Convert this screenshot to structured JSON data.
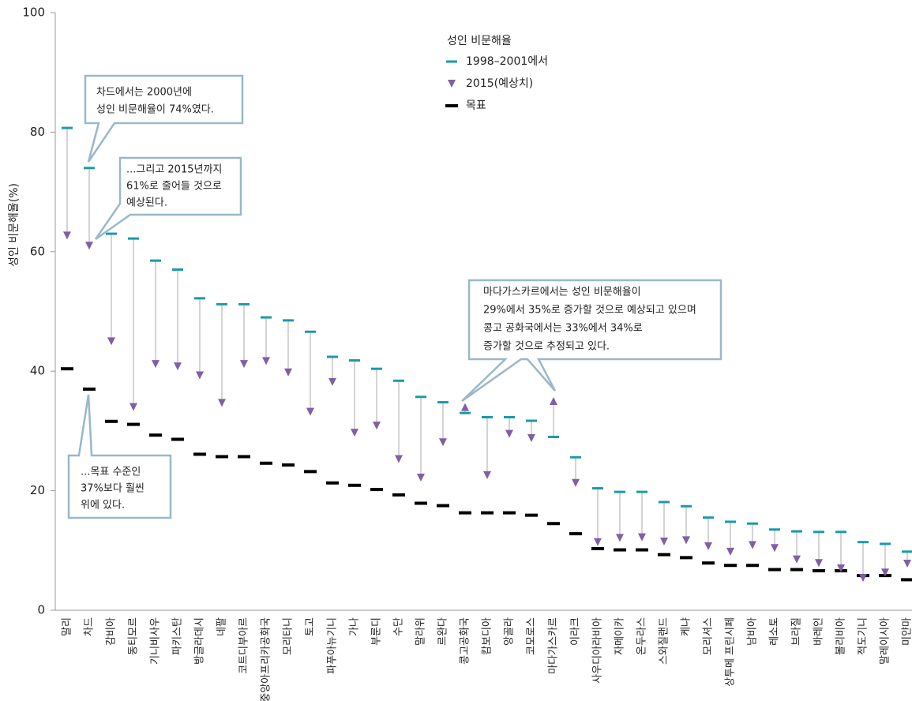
{
  "chart_data": {
    "type": "dot-range",
    "y_label": "성인 비문해율(%)",
    "legend_title": "성인 비문해율",
    "categories": [
      "말리",
      "차드",
      "감비아",
      "동티모르",
      "기니비사우",
      "파키스탄",
      "방글라데시",
      "네팔",
      "코트디부아르",
      "중앙아프리카공화국",
      "모리타니",
      "토고",
      "파푸아뉴기니",
      "가나",
      "부룬디",
      "수단",
      "말라위",
      "르완다",
      "콩고공화국",
      "캄보디아",
      "앙골라",
      "코모로스",
      "마다가스카르",
      "이라크",
      "사우디아라비아",
      "자메이카",
      "온두라스",
      "스와질랜드",
      "케냐",
      "모리셔스",
      "상투메 프린시페",
      "남비아",
      "레소토",
      "브라질",
      "바레인",
      "볼리비아",
      "적도기니",
      "말레이시아",
      "미얀마"
    ],
    "series": [
      {
        "name": "1998–2001에서",
        "color": "#1b9aaa",
        "values": [
          80.7,
          74,
          63,
          62.2,
          58.5,
          57,
          52.2,
          51.2,
          51.2,
          49,
          48.5,
          46.6,
          42.4,
          41.8,
          40.4,
          38.4,
          35.7,
          34.8,
          33,
          32.3,
          32.3,
          31.7,
          29,
          25.6,
          20.4,
          19.8,
          19.8,
          18.1,
          17.4,
          15.5,
          14.8,
          14.5,
          13.5,
          13.2,
          13.1,
          13.1,
          11.4,
          11.1,
          9.8
        ]
      },
      {
        "name": "2015(예상치)",
        "color": "#7f5fa6",
        "values": [
          62.7,
          61,
          45,
          34,
          41.2,
          40.8,
          39.3,
          34.7,
          41.2,
          41.7,
          39.8,
          33.2,
          38.2,
          29.7,
          30.9,
          25.3,
          22.2,
          28.1,
          34,
          22.6,
          29.5,
          28.8,
          35,
          21.3,
          11.4,
          12.1,
          12.2,
          11.5,
          11.7,
          10.7,
          9.8,
          10.9,
          10.4,
          8.5,
          7.9,
          7,
          5.4,
          6.3,
          7.8
        ]
      },
      {
        "name": "목표",
        "color": "#000000",
        "values": [
          40.4,
          37,
          31.6,
          31.1,
          29.3,
          28.6,
          26.1,
          25.7,
          25.7,
          24.6,
          24.3,
          23.2,
          21.3,
          20.9,
          20.2,
          19.3,
          17.9,
          17.5,
          16.3,
          16.3,
          16.3,
          15.9,
          14.5,
          12.8,
          10.3,
          10.1,
          10.1,
          9.3,
          8.8,
          7.9,
          7.5,
          7.5,
          6.8,
          6.8,
          6.6,
          6.6,
          5.8,
          5.8,
          5.1
        ]
      }
    ],
    "ylim": [
      0,
      100
    ],
    "yticks": [
      0,
      20,
      40,
      60,
      80,
      100
    ],
    "grid": false,
    "annotations": [
      {
        "lines": [
          "차드에서는 2000년에",
          "성인 비문해율이 74%였다."
        ]
      },
      {
        "lines": [
          "...그리고 2015년까지",
          " 61%로 줄어들 것으로",
          "예상된다."
        ]
      },
      {
        "lines": [
          "...목표 수준인",
          "37%보다 훨씬",
          "위에 있다."
        ]
      },
      {
        "lines": [
          "마다가스카르에서는 성인 비문해율이",
          "29%에서 35%로 증가할 것으로 예상되고 있으며",
          "콩고 공화국에서는 33%에서 34%로",
          "증가할 것으로 추정되고 있다."
        ]
      }
    ]
  }
}
